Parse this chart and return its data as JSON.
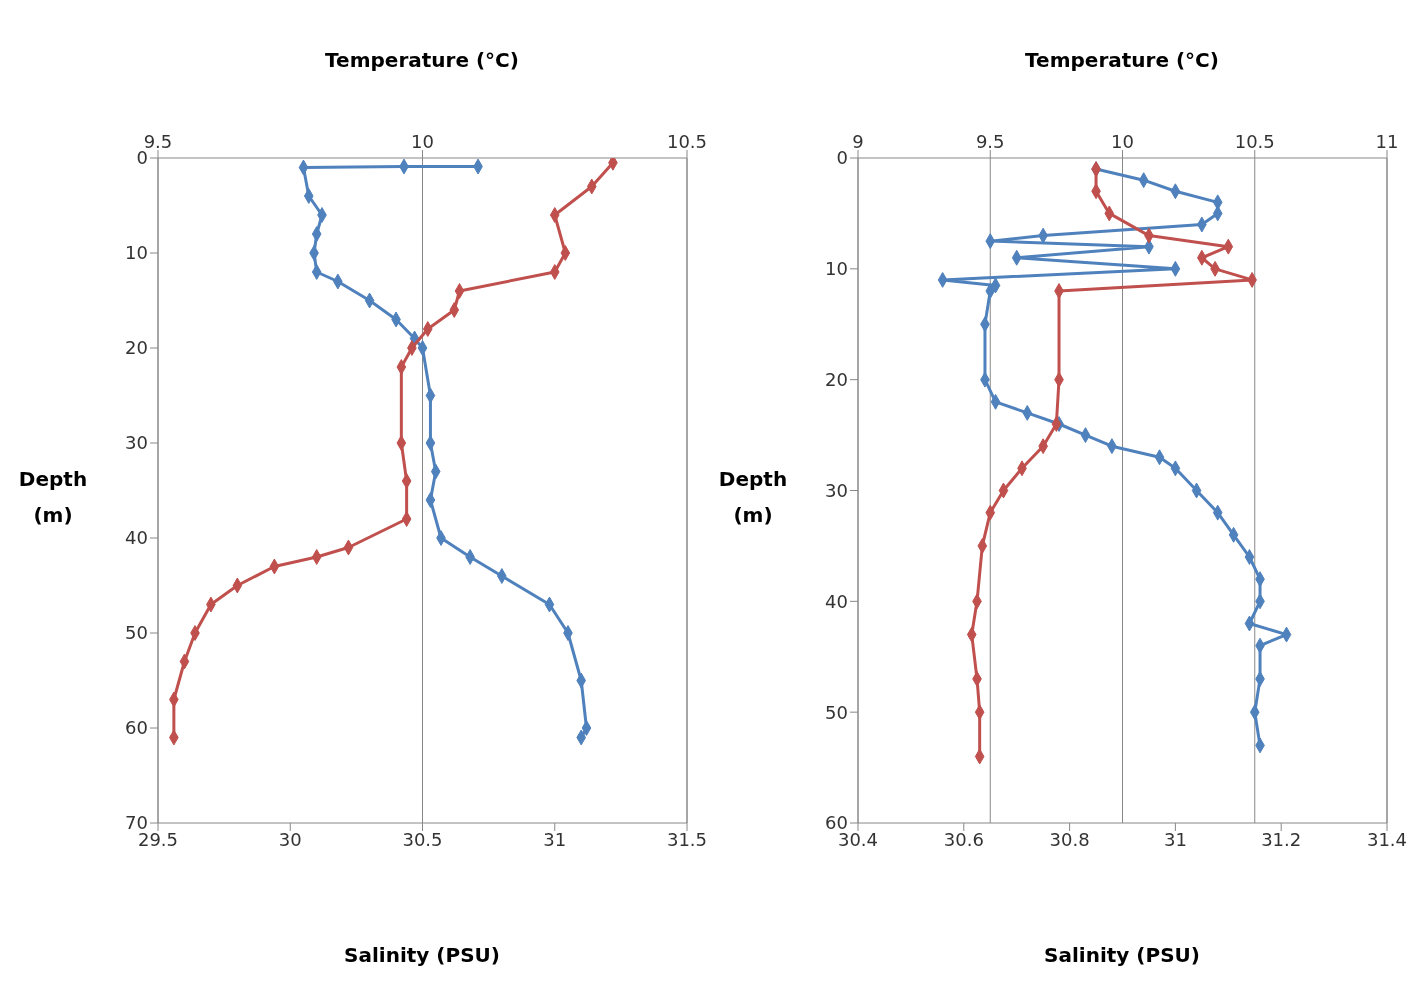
{
  "chart_data": [
    {
      "type": "line",
      "xlabel": "Salinity (PSU)",
      "x2label": "Temperature (°C)",
      "ylabel": "Depth (m)",
      "xlim": [
        29.5,
        31.5
      ],
      "xticks": [
        29.5,
        30,
        30.5,
        31,
        31.5
      ],
      "x2lim": [
        9.5,
        10.5
      ],
      "x2ticks": [
        9.5,
        10,
        10.5
      ],
      "ylim": [
        70,
        0
      ],
      "yticks": [
        0,
        10,
        20,
        30,
        40,
        50,
        60,
        70
      ],
      "grid": "x2",
      "marker": "diamond",
      "line_style": "solid",
      "series": [
        {
          "color": "#4f81bd",
          "x": [
            30.71,
            30.43,
            30.05,
            30.07,
            30.12,
            30.1,
            30.09,
            30.1,
            30.18,
            30.3,
            30.4,
            30.47,
            30.5,
            30.53,
            30.53,
            30.55,
            30.53,
            30.57,
            30.68,
            30.8,
            30.98,
            31.05,
            31.1,
            31.12,
            31.1
          ],
          "values": [
            0.9,
            0.9,
            1,
            4,
            6,
            8,
            10,
            12,
            13,
            15,
            17,
            19,
            20,
            25,
            30,
            33,
            36,
            40,
            42,
            44,
            47,
            50,
            55,
            60,
            61
          ]
        },
        {
          "color": "#c0504d",
          "axis": "x2",
          "x": [
            10.36,
            10.32,
            10.25,
            10.27,
            10.25,
            10.07,
            10.06,
            10.01,
            9.98,
            9.96,
            9.96,
            9.97,
            9.97,
            9.86,
            9.8,
            9.72,
            9.65,
            9.6,
            9.57,
            9.55,
            9.53,
            9.53
          ],
          "values": [
            0.5,
            3,
            6,
            10,
            12,
            14,
            16,
            18,
            20,
            22,
            30,
            34,
            38,
            41,
            42,
            43,
            45,
            47,
            50,
            53,
            57,
            61
          ]
        }
      ]
    },
    {
      "type": "line",
      "xlabel": "Salinity (PSU)",
      "x2label": "Temperature (°C)",
      "ylabel": "Depth (m)",
      "xlim": [
        30.4,
        31.4
      ],
      "xticks": [
        30.4,
        30.6,
        30.8,
        31,
        31.2,
        31.4
      ],
      "x2lim": [
        9,
        11
      ],
      "x2ticks": [
        9,
        9.5,
        10,
        10.5,
        11
      ],
      "ylim": [
        60,
        0
      ],
      "yticks": [
        0,
        10,
        20,
        30,
        40,
        50,
        60
      ],
      "grid": "x2",
      "marker": "diamond",
      "line_style": "solid",
      "series": [
        {
          "color": "#4f81bd",
          "x": [
            30.85,
            30.94,
            31.0,
            31.08,
            31.08,
            31.05,
            30.75,
            30.65,
            30.95,
            30.7,
            31.0,
            30.56,
            30.66,
            30.65,
            30.64,
            30.64,
            30.66,
            30.72,
            30.78,
            30.83,
            30.88,
            30.97,
            31.0,
            31.04,
            31.08,
            31.11,
            31.14,
            31.16,
            31.16,
            31.14,
            31.21,
            31.16,
            31.16,
            31.15,
            31.16
          ],
          "values": [
            1,
            2,
            3,
            4,
            5,
            6,
            7,
            7.5,
            8,
            9,
            10,
            11,
            11.5,
            12,
            15,
            20,
            22,
            23,
            24,
            25,
            26,
            27,
            28,
            30,
            32,
            34,
            36,
            38,
            40,
            42,
            43,
            44,
            47,
            50,
            53
          ]
        },
        {
          "color": "#c0504d",
          "axis": "x2",
          "x": [
            9.9,
            9.9,
            9.95,
            10.1,
            10.4,
            10.3,
            10.35,
            10.49,
            9.76,
            9.76,
            9.75,
            9.7,
            9.62,
            9.55,
            9.5,
            9.47,
            9.45,
            9.43,
            9.45,
            9.46,
            9.46
          ],
          "values": [
            1,
            3,
            5,
            7,
            8,
            9,
            10,
            11,
            12,
            20,
            24,
            26,
            28,
            30,
            32,
            35,
            40,
            43,
            47,
            50,
            54
          ]
        }
      ]
    }
  ]
}
